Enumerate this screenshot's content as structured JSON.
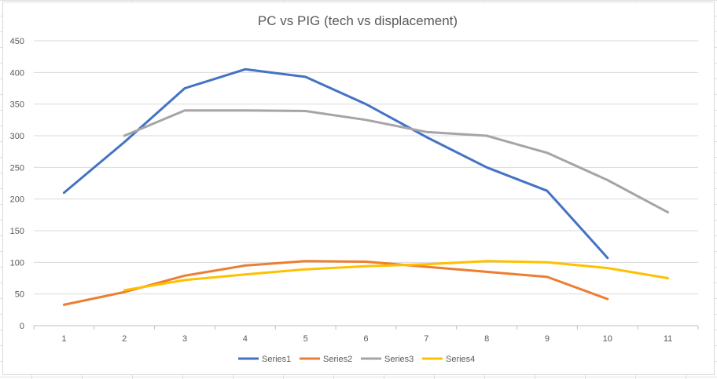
{
  "chart_data": {
    "type": "line",
    "title": "PC vs PIG (tech vs displacement)",
    "xlabel": "",
    "ylabel": "",
    "x": [
      1,
      2,
      3,
      4,
      5,
      6,
      7,
      8,
      9,
      10,
      11
    ],
    "ylim": [
      0,
      450
    ],
    "y_ticks": [
      0,
      50,
      100,
      150,
      200,
      250,
      300,
      350,
      400,
      450
    ],
    "grid": true,
    "legend_position": "bottom",
    "series": [
      {
        "name": "Series1",
        "color": "#4472C4",
        "values": [
          210,
          290,
          375,
          405,
          393,
          350,
          298,
          250,
          213,
          107,
          null
        ]
      },
      {
        "name": "Series2",
        "color": "#ED7D31",
        "values": [
          33,
          53,
          79,
          95,
          102,
          101,
          93,
          85,
          77,
          42,
          null
        ]
      },
      {
        "name": "Series3",
        "color": "#A5A5A5",
        "values": [
          null,
          300,
          340,
          340,
          339,
          325,
          306,
          300,
          273,
          230,
          179
        ]
      },
      {
        "name": "Series4",
        "color": "#FFC000",
        "values": [
          null,
          56,
          72,
          81,
          89,
          94,
          97,
          102,
          100,
          91,
          75
        ]
      }
    ]
  }
}
